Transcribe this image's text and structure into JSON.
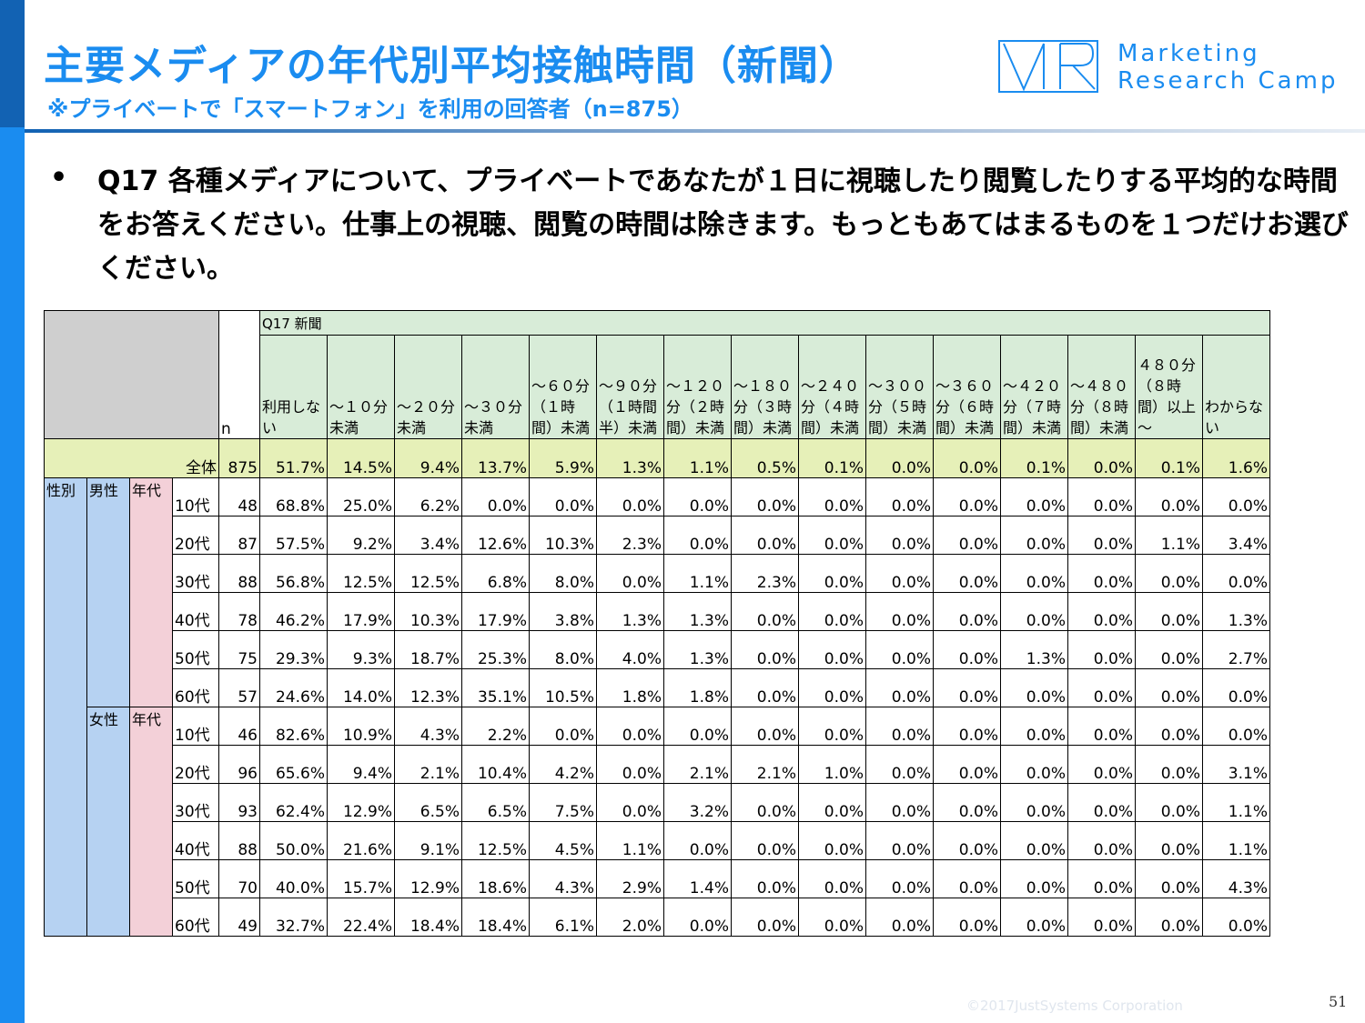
{
  "header": {
    "title": "主要メディアの年代別平均接触時間（新聞）",
    "subtitle": "※プライベートで「スマートフォン」を利用の回答者（n=875）",
    "logo_line1": "Marketing",
    "logo_line2": "Research Camp"
  },
  "question": {
    "bullet": "•",
    "text": "Q17 各種メディアについて、プライベートであなたが１日に視聴したり閲覧したりする平均的な時間をお答えください。仕事上の視聴、閲覧の時間は除きます。もっともあてはまるものを１つだけお選びください。"
  },
  "table": {
    "question_label": "Q17 新聞",
    "n_label": "n",
    "columns": [
      "利用しない",
      "～１０分未満",
      "～２０分未満",
      "～３０分未満",
      "～６０分（１時間）未満",
      "～９０分（１時間半）未満",
      "～１２０分（２時間）未満",
      "～１８０分（３時間）未満",
      "～２４０分（４時間）未満",
      "～３００分（５時間）未満",
      "～３６０分（６時間）未満",
      "～４２０分（７時間）未満",
      "～４８０分（８時間）未満",
      "４８０分（８時間）以上～",
      "わからない"
    ],
    "total": {
      "label": "全体",
      "n": "875",
      "values": [
        "51.7%",
        "14.5%",
        "9.4%",
        "13.7%",
        "5.9%",
        "1.3%",
        "1.1%",
        "0.5%",
        "0.1%",
        "0.0%",
        "0.0%",
        "0.1%",
        "0.0%",
        "0.1%",
        "1.6%"
      ]
    },
    "sex_label": "性別",
    "era_label": "年代",
    "groups": [
      {
        "gender": "男性",
        "rows": [
          {
            "age": "10代",
            "n": "48",
            "values": [
              "68.8%",
              "25.0%",
              "6.2%",
              "0.0%",
              "0.0%",
              "0.0%",
              "0.0%",
              "0.0%",
              "0.0%",
              "0.0%",
              "0.0%",
              "0.0%",
              "0.0%",
              "0.0%",
              "0.0%"
            ]
          },
          {
            "age": "20代",
            "n": "87",
            "values": [
              "57.5%",
              "9.2%",
              "3.4%",
              "12.6%",
              "10.3%",
              "2.3%",
              "0.0%",
              "0.0%",
              "0.0%",
              "0.0%",
              "0.0%",
              "0.0%",
              "0.0%",
              "1.1%",
              "3.4%"
            ]
          },
          {
            "age": "30代",
            "n": "88",
            "values": [
              "56.8%",
              "12.5%",
              "12.5%",
              "6.8%",
              "8.0%",
              "0.0%",
              "1.1%",
              "2.3%",
              "0.0%",
              "0.0%",
              "0.0%",
              "0.0%",
              "0.0%",
              "0.0%",
              "0.0%"
            ]
          },
          {
            "age": "40代",
            "n": "78",
            "values": [
              "46.2%",
              "17.9%",
              "10.3%",
              "17.9%",
              "3.8%",
              "1.3%",
              "1.3%",
              "0.0%",
              "0.0%",
              "0.0%",
              "0.0%",
              "0.0%",
              "0.0%",
              "0.0%",
              "1.3%"
            ]
          },
          {
            "age": "50代",
            "n": "75",
            "values": [
              "29.3%",
              "9.3%",
              "18.7%",
              "25.3%",
              "8.0%",
              "4.0%",
              "1.3%",
              "0.0%",
              "0.0%",
              "0.0%",
              "0.0%",
              "1.3%",
              "0.0%",
              "0.0%",
              "2.7%"
            ]
          },
          {
            "age": "60代",
            "n": "57",
            "values": [
              "24.6%",
              "14.0%",
              "12.3%",
              "35.1%",
              "10.5%",
              "1.8%",
              "1.8%",
              "0.0%",
              "0.0%",
              "0.0%",
              "0.0%",
              "0.0%",
              "0.0%",
              "0.0%",
              "0.0%"
            ]
          }
        ]
      },
      {
        "gender": "女性",
        "rows": [
          {
            "age": "10代",
            "n": "46",
            "values": [
              "82.6%",
              "10.9%",
              "4.3%",
              "2.2%",
              "0.0%",
              "0.0%",
              "0.0%",
              "0.0%",
              "0.0%",
              "0.0%",
              "0.0%",
              "0.0%",
              "0.0%",
              "0.0%",
              "0.0%"
            ]
          },
          {
            "age": "20代",
            "n": "96",
            "values": [
              "65.6%",
              "9.4%",
              "2.1%",
              "10.4%",
              "4.2%",
              "0.0%",
              "2.1%",
              "2.1%",
              "1.0%",
              "0.0%",
              "0.0%",
              "0.0%",
              "0.0%",
              "0.0%",
              "3.1%"
            ]
          },
          {
            "age": "30代",
            "n": "93",
            "values": [
              "62.4%",
              "12.9%",
              "6.5%",
              "6.5%",
              "7.5%",
              "0.0%",
              "3.2%",
              "0.0%",
              "0.0%",
              "0.0%",
              "0.0%",
              "0.0%",
              "0.0%",
              "0.0%",
              "1.1%"
            ]
          },
          {
            "age": "40代",
            "n": "88",
            "values": [
              "50.0%",
              "21.6%",
              "9.1%",
              "12.5%",
              "4.5%",
              "1.1%",
              "0.0%",
              "0.0%",
              "0.0%",
              "0.0%",
              "0.0%",
              "0.0%",
              "0.0%",
              "0.0%",
              "1.1%"
            ]
          },
          {
            "age": "50代",
            "n": "70",
            "values": [
              "40.0%",
              "15.7%",
              "12.9%",
              "18.6%",
              "4.3%",
              "2.9%",
              "1.4%",
              "0.0%",
              "0.0%",
              "0.0%",
              "0.0%",
              "0.0%",
              "0.0%",
              "0.0%",
              "4.3%"
            ]
          },
          {
            "age": "60代",
            "n": "49",
            "values": [
              "32.7%",
              "22.4%",
              "18.4%",
              "18.4%",
              "6.1%",
              "2.0%",
              "0.0%",
              "0.0%",
              "0.0%",
              "0.0%",
              "0.0%",
              "0.0%",
              "0.0%",
              "0.0%",
              "0.0%"
            ]
          }
        ]
      }
    ]
  },
  "footer": {
    "copyright": "©2017JustSystems Corporation",
    "page_number": "51"
  }
}
